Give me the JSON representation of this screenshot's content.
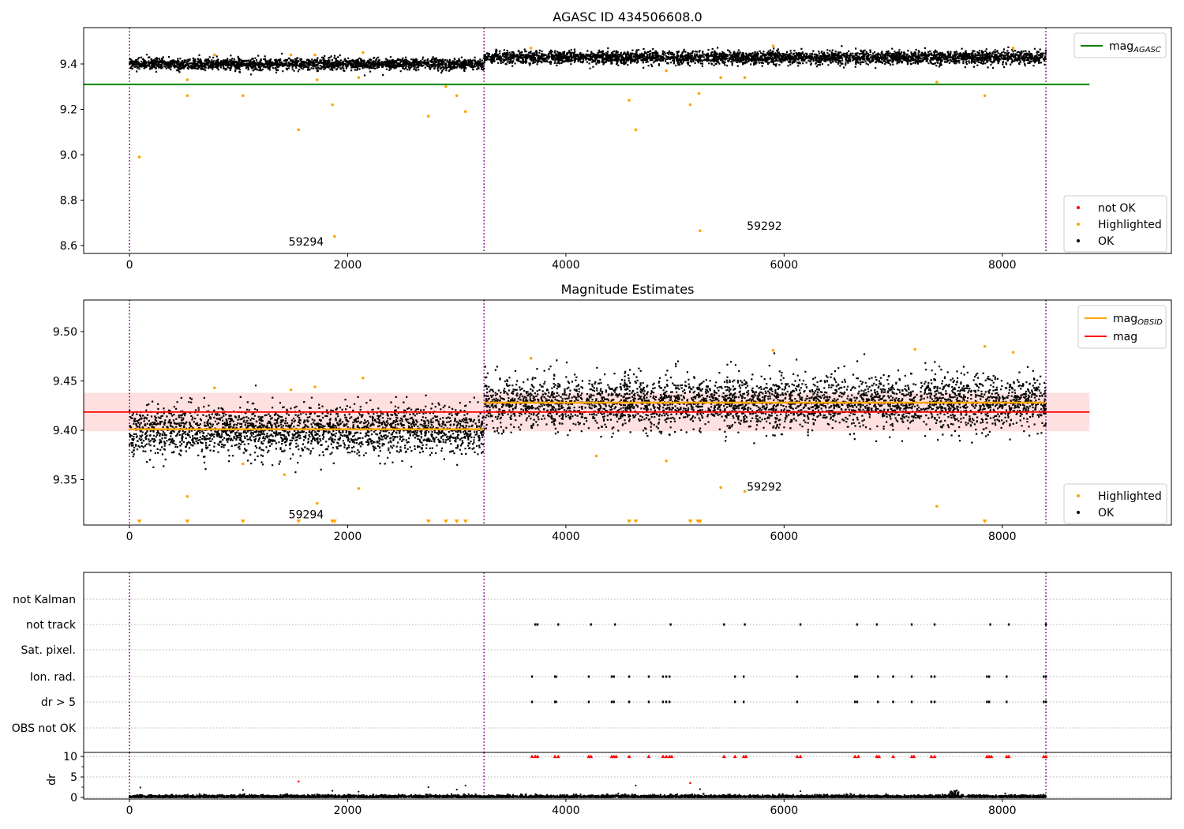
{
  "chart_data": [
    {
      "id": "top",
      "type": "scatter",
      "title": "AGASC ID 434506608.0",
      "xlim": [
        -420,
        9550
      ],
      "ylim": [
        8.565,
        9.56
      ],
      "xticks": [
        0,
        2000,
        4000,
        6000,
        8000
      ],
      "yticks": [
        8.6,
        8.8,
        9.0,
        9.2,
        9.4
      ],
      "ytick_format": 1,
      "vlines": [
        0,
        3250,
        8400
      ],
      "hline": {
        "y": 9.31,
        "x0": -420,
        "x1": 8800,
        "color": "#008000"
      },
      "segments": [
        {
          "x0": 0,
          "x1": 3250,
          "mean": 9.4,
          "sd": 0.012
        },
        {
          "x0": 3250,
          "x1": 8400,
          "mean": 9.428,
          "sd": 0.014
        }
      ],
      "outliers": [
        [
          90,
          8.99
        ],
        [
          530,
          9.33
        ],
        [
          530,
          9.26
        ],
        [
          780,
          9.44
        ],
        [
          1040,
          9.26
        ],
        [
          1550,
          9.11
        ],
        [
          1480,
          9.44
        ],
        [
          1700,
          9.44
        ],
        [
          1720,
          9.33
        ],
        [
          1860,
          9.22
        ],
        [
          1880,
          8.64
        ],
        [
          2100,
          9.34
        ],
        [
          2140,
          9.45
        ],
        [
          2740,
          9.17
        ],
        [
          2900,
          9.3
        ],
        [
          3000,
          9.26
        ],
        [
          3080,
          9.19
        ],
        [
          3680,
          9.47
        ],
        [
          4580,
          9.24
        ],
        [
          4640,
          9.11
        ],
        [
          4920,
          9.37
        ],
        [
          5140,
          9.22
        ],
        [
          5220,
          9.27
        ],
        [
          5230,
          8.665
        ],
        [
          5420,
          9.34
        ],
        [
          5640,
          9.34
        ],
        [
          5900,
          9.48
        ],
        [
          7400,
          9.32
        ],
        [
          7840,
          9.26
        ],
        [
          8100,
          9.47
        ]
      ],
      "labels": [
        {
          "text": "59294",
          "x": 1620,
          "y": 8.6
        },
        {
          "text": "59292",
          "x": 5820,
          "y": 8.67
        }
      ],
      "legend1": [
        {
          "label": "mag",
          "sub": "AGASC",
          "color": "#008000"
        }
      ],
      "legend2": [
        {
          "label": "not OK",
          "color": "#ff0000"
        },
        {
          "label": "Highlighted",
          "color": "#ffa500"
        },
        {
          "label": "OK",
          "color": "#000000"
        }
      ]
    },
    {
      "id": "middle",
      "title": "Magnitude Estimates",
      "type": "scatter",
      "xlim": [
        -420,
        9550
      ],
      "ylim": [
        9.304,
        9.532
      ],
      "xticks": [
        0,
        2000,
        4000,
        6000,
        8000
      ],
      "yticks": [
        9.35,
        9.4,
        9.45,
        9.5
      ],
      "ytick_format": 2,
      "vlines": [
        0,
        3250,
        8400
      ],
      "band": {
        "y0": 9.399,
        "y1": 9.438,
        "x0": -420,
        "x1": 8800
      },
      "mag_line": {
        "y": 9.4185,
        "x0": -420,
        "x1": 8800,
        "color": "#ff0000"
      },
      "obsid_lines": [
        {
          "x0": 0,
          "x1": 3250,
          "y": 9.401
        },
        {
          "x0": 3250,
          "x1": 8400,
          "y": 9.428
        }
      ],
      "segments": [
        {
          "x0": 0,
          "x1": 3250,
          "mean": 9.4,
          "sd": 0.012
        },
        {
          "x0": 3250,
          "x1": 8400,
          "mean": 9.428,
          "sd": 0.013
        }
      ],
      "outliers": [
        [
          530,
          9.333
        ],
        [
          780,
          9.443
        ],
        [
          1040,
          9.366
        ],
        [
          1420,
          9.355
        ],
        [
          1480,
          9.441
        ],
        [
          1700,
          9.444
        ],
        [
          1720,
          9.326
        ],
        [
          2100,
          9.341
        ],
        [
          2140,
          9.453
        ],
        [
          3680,
          9.473
        ],
        [
          4280,
          9.374
        ],
        [
          4920,
          9.369
        ],
        [
          5420,
          9.342
        ],
        [
          5640,
          9.338
        ],
        [
          5900,
          9.481
        ],
        [
          7200,
          9.482
        ],
        [
          7400,
          9.323
        ],
        [
          7840,
          9.485
        ],
        [
          8100,
          9.479
        ]
      ],
      "below_markers": [
        90,
        530,
        1040,
        1550,
        1860,
        1880,
        2740,
        2900,
        3000,
        3080,
        4580,
        4640,
        5140,
        5210,
        5230,
        7840
      ],
      "labels": [
        {
          "text": "59294",
          "x": 1620,
          "y": 9.311
        },
        {
          "text": "59292",
          "x": 5820,
          "y": 9.339
        }
      ],
      "legend1": [
        {
          "label": "mag",
          "sub": "OBSID",
          "color": "#ffa500"
        },
        {
          "label": "mag",
          "sub": "",
          "color": "#ff0000"
        }
      ],
      "legend2": [
        {
          "label": "Highlighted",
          "color": "#ffa500"
        },
        {
          "label": "OK",
          "color": "#000000"
        }
      ]
    },
    {
      "id": "flags",
      "type": "scatter",
      "xlim": [
        -420,
        9550
      ],
      "vlines": [
        0,
        3250,
        8400
      ],
      "rows": [
        "not Kalman",
        "not track",
        "Sat. pixel.",
        "Ion. rad.",
        "dr > 5",
        "OBS not OK"
      ],
      "not_track": [
        3720,
        3740,
        3930,
        4230,
        4450,
        4960,
        5450,
        5640,
        6150,
        6670,
        6850,
        7170,
        7380,
        7890,
        8060,
        8400
      ],
      "ion_rad": [
        3690,
        3900,
        3910,
        4210,
        4420,
        4440,
        4580,
        4760,
        4890,
        4920,
        4950,
        5550,
        5630,
        6120,
        6650,
        6670,
        6860,
        7000,
        7170,
        7350,
        7380,
        7860,
        7880,
        8040,
        8380,
        8400
      ],
      "dr_gt_5": [
        3690,
        3900,
        3910,
        4210,
        4420,
        4440,
        4580,
        4760,
        4890,
        4920,
        4950,
        5550,
        5630,
        6120,
        6650,
        6670,
        6860,
        7000,
        7170,
        7350,
        7380,
        7860,
        7880,
        8040,
        8380,
        8400
      ]
    },
    {
      "id": "dr",
      "type": "scatter",
      "ylabel": "dr",
      "xlim": [
        -420,
        9550
      ],
      "ylim": [
        -0.4,
        11
      ],
      "xticks": [
        0,
        2000,
        4000,
        6000,
        8000
      ],
      "yticks": [
        0,
        5,
        10
      ],
      "vlines": [
        0,
        3250,
        8400
      ],
      "red_at_10": [
        3690,
        3720,
        3740,
        3900,
        3930,
        4210,
        4230,
        4420,
        4440,
        4460,
        4580,
        4760,
        4890,
        4920,
        4950,
        4970,
        5450,
        5550,
        5630,
        5650,
        6120,
        6150,
        6650,
        6680,
        6850,
        6870,
        7000,
        7170,
        7190,
        7350,
        7380,
        7860,
        7880,
        7900,
        8040,
        8060,
        8380,
        8400
      ],
      "red_low": [
        [
          1550,
          3.9
        ],
        [
          5140,
          3.5
        ]
      ],
      "black_high": [
        [
          100,
          2.4
        ],
        [
          1040,
          1.8
        ],
        [
          1860,
          1.6
        ],
        [
          2100,
          1.4
        ],
        [
          2740,
          2.5
        ],
        [
          3000,
          1.9
        ],
        [
          3080,
          2.9
        ],
        [
          4640,
          2.9
        ],
        [
          5230,
          2.0
        ],
        [
          6150,
          1.5
        ]
      ]
    }
  ]
}
